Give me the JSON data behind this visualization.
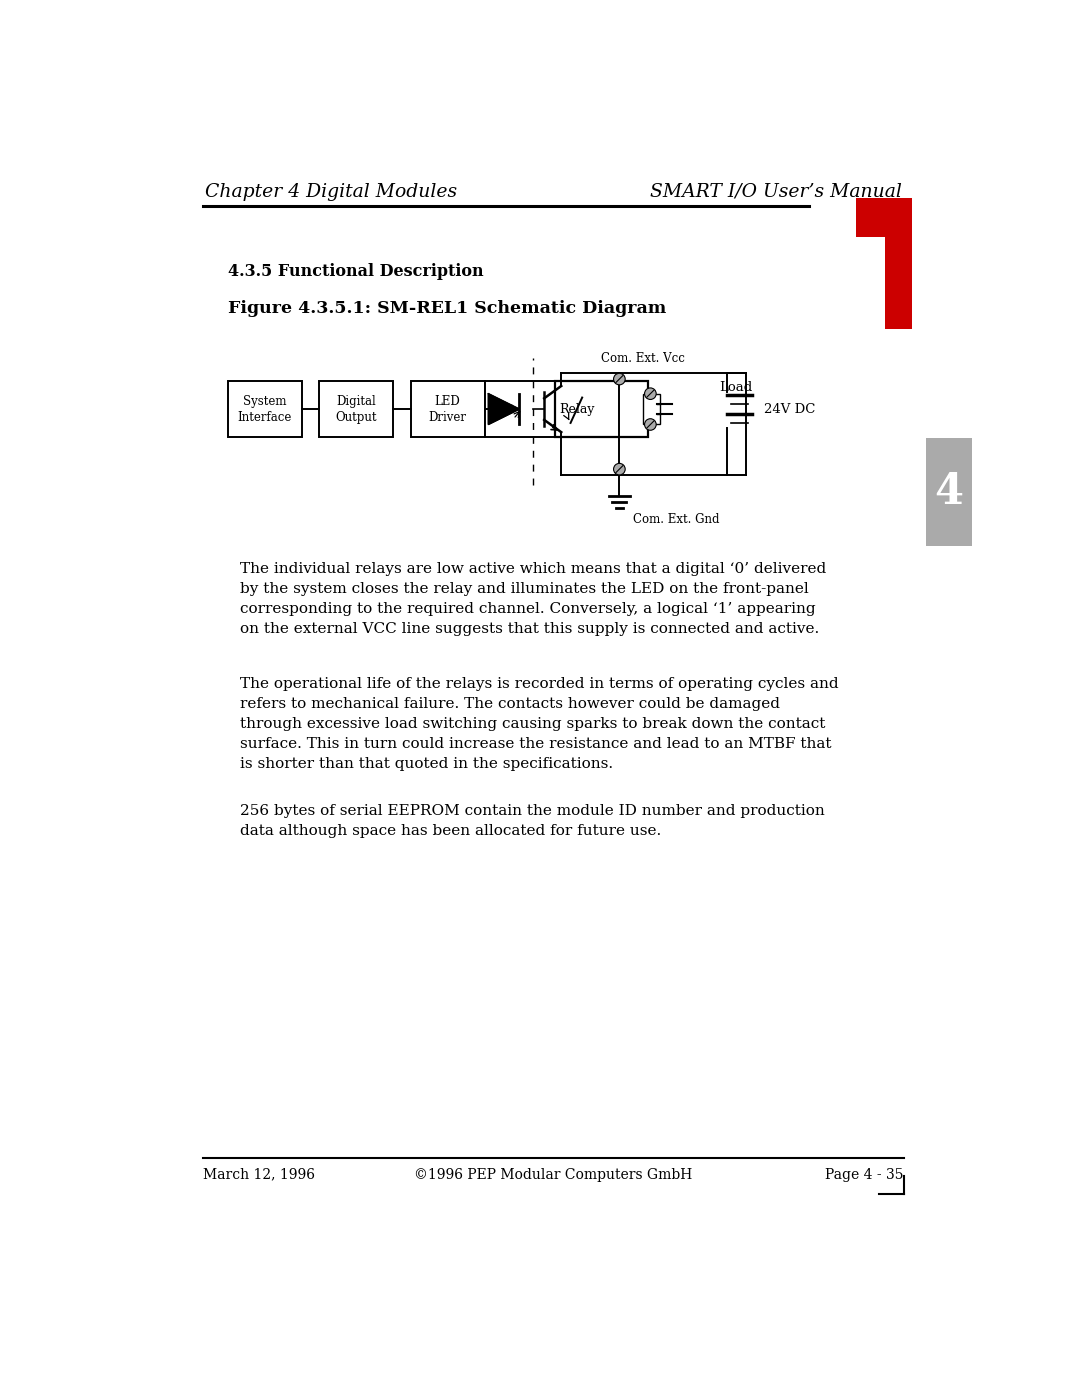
{
  "page_title_left": "Chapter 4 Digital Modules",
  "page_title_right": "SMART I/O User’s Manual",
  "section_heading": "4.3.5 Functional Description",
  "figure_title": "Figure 4.3.5.1: SM-REL1 Schematic Diagram",
  "para1": "The individual relays are low active which means that a digital ‘0’ delivered\nby the system closes the relay and illuminates the LED on the front-panel\ncorresponding to the required channel. Conversely, a logical ‘1’ appearing\non the external VCC line suggests that this supply is connected and active.",
  "para2": "The operational life of the relays is recorded in terms of operating cycles and\nrefers to mechanical failure. The contacts however could be damaged\nthrough excessive load switching causing sparks to break down the contact\nsurface. This in turn could increase the resistance and lead to an MTBF that\nis shorter than that quoted in the specifications.",
  "para3": "256 bytes of serial EEPROM contain the module ID number and production\ndata although space has been allocated for future use.",
  "footer_left": "March 12, 1996",
  "footer_center": "©1996 PEP Modular Computers GmbH",
  "footer_right": "Page 4 - 35",
  "bg_color": "#ffffff",
  "text_color": "#1a1a1a",
  "red_color": "#cc0000",
  "gray_tab_color": "#aaaaaa"
}
